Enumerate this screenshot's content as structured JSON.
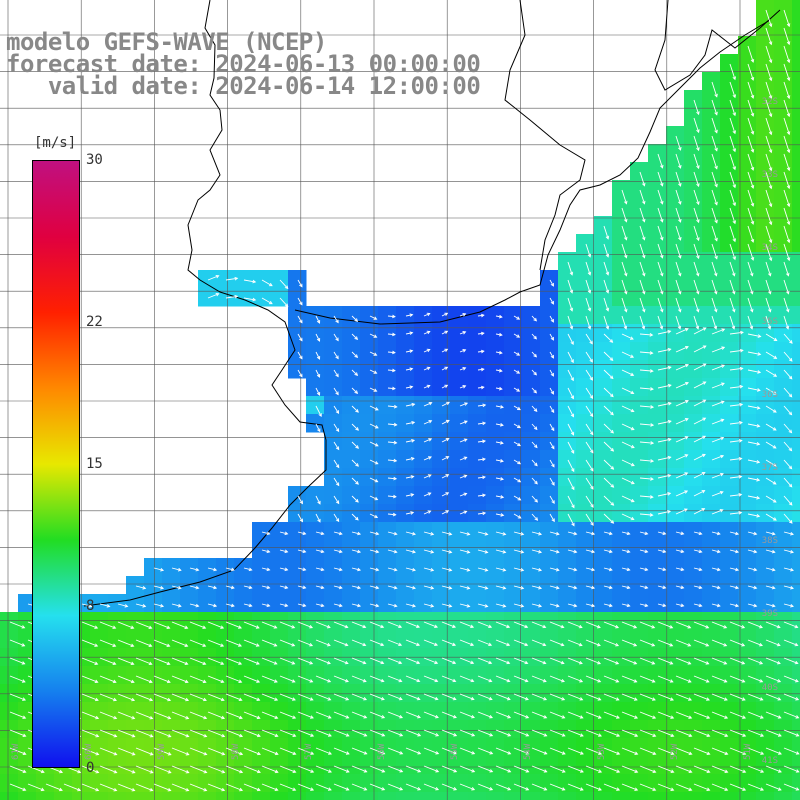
{
  "header": {
    "line1": "modelo GEFS-WAVE (NCEP)",
    "line2": "forecast date: 2024-06-13 00:00:00",
    "line3": "   valid date: 2024-06-14 12:00:00"
  },
  "colorbar": {
    "unit": "[m/s]",
    "min": 0,
    "max": 30,
    "ticks": [
      {
        "label": "30",
        "value": 30
      },
      {
        "label": "22",
        "value": 22
      },
      {
        "label": "15",
        "value": 15
      },
      {
        "label": "8",
        "value": 8
      },
      {
        "label": "0",
        "value": 0
      }
    ],
    "colors": [
      "#1010ee",
      "#1580ee",
      "#25e0ee",
      "#22dd22",
      "#e8e800",
      "#ff8800",
      "#ff2000",
      "#e00040",
      "#c01080"
    ]
  },
  "axes": {
    "lat_labels": [
      "32S",
      "33S",
      "34S",
      "35S",
      "36S",
      "37S",
      "38S",
      "39S",
      "40S",
      "41S"
    ],
    "lon_labels": [
      "61W",
      "60W",
      "59W",
      "58W",
      "57W",
      "56W",
      "55W",
      "54W",
      "53W",
      "52W",
      "51W"
    ]
  },
  "colors": {
    "grid": "#555555",
    "coast": "#000000",
    "vector": "#ffffff",
    "label": "#888888"
  }
}
